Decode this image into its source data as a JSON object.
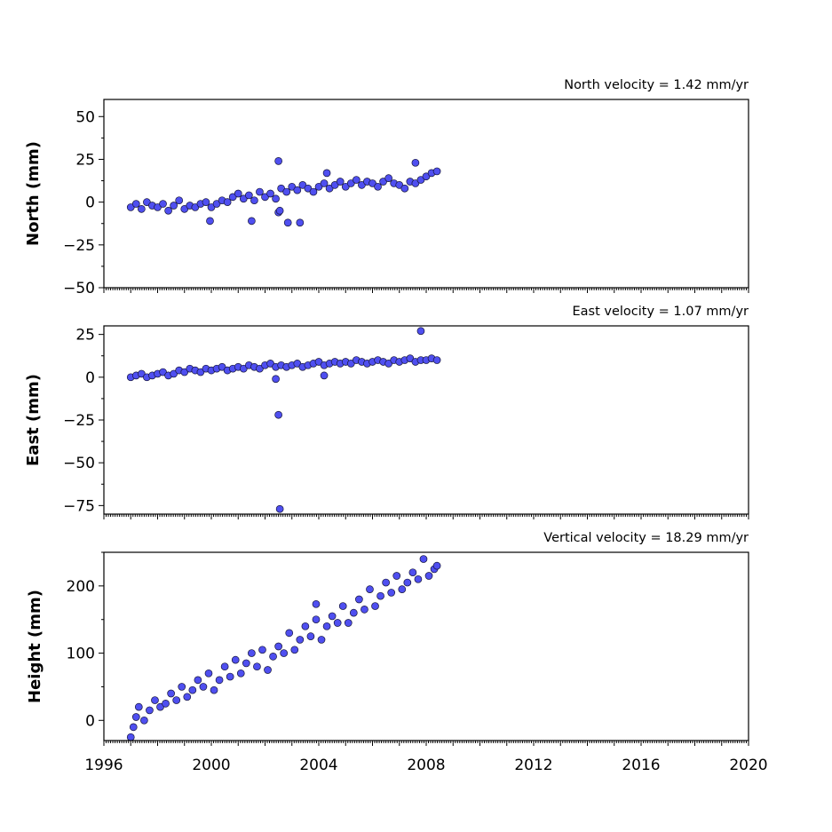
{
  "chart_data": [
    {
      "type": "scatter",
      "title": "North velocity = 1.42 mm/yr",
      "ylabel": "North (mm)",
      "xlim": [
        1996,
        2020
      ],
      "ylim": [
        -50,
        60
      ],
      "yticks": [
        -50,
        -25,
        0,
        25,
        50
      ],
      "yticklabels": [
        "−50",
        "−25",
        "0",
        "25",
        "50"
      ],
      "marker_color": "#4f4ff0",
      "series": [
        {
          "x": [
            1997.0,
            1997.2,
            1997.4,
            1997.6,
            1997.8,
            1998.0,
            1998.2,
            1998.4,
            1998.6,
            1998.8,
            1999.0,
            1999.2,
            1999.4,
            1999.6,
            1999.8,
            2000.0,
            2000.2,
            2000.4,
            2000.6,
            2000.8,
            2001.0,
            2001.2,
            2001.4,
            2001.6,
            2001.8,
            2002.0,
            2002.2,
            2002.4,
            2002.6,
            2002.8,
            2003.0,
            2003.2,
            2003.4,
            2003.6,
            2003.8,
            2004.0,
            2004.2,
            2004.4,
            2004.6,
            2004.8,
            2005.0,
            2005.2,
            2005.4,
            2005.6,
            2005.8,
            2006.0,
            2006.2,
            2006.4,
            2006.6,
            2006.8,
            2007.0,
            2007.2,
            2007.4,
            2007.6,
            2007.8,
            2008.0,
            2008.2,
            2008.4,
            1999.95,
            2001.5,
            2002.5,
            2002.55,
            2002.85,
            2003.3,
            2002.5,
            2007.6,
            2004.3
          ],
          "y": [
            -3,
            -1,
            -4,
            0,
            -2,
            -3,
            -1,
            -5,
            -2,
            1,
            -4,
            -2,
            -3,
            -1,
            0,
            -3,
            -1,
            1,
            0,
            3,
            5,
            2,
            4,
            1,
            6,
            3,
            5,
            2,
            8,
            6,
            9,
            7,
            10,
            8,
            6,
            9,
            11,
            8,
            10,
            12,
            9,
            11,
            13,
            10,
            12,
            11,
            9,
            12,
            14,
            11,
            10,
            8,
            12,
            11,
            13,
            15,
            17,
            18,
            -11,
            -11,
            -6,
            -5,
            -12,
            -12,
            24,
            23,
            17
          ]
        }
      ]
    },
    {
      "type": "scatter",
      "title": "East velocity = 1.07 mm/yr",
      "ylabel": "East (mm)",
      "xlim": [
        1996,
        2020
      ],
      "ylim": [
        -80,
        30
      ],
      "yticks": [
        -75,
        -50,
        -25,
        0,
        25
      ],
      "yticklabels": [
        "−75",
        "−50",
        "−25",
        "0",
        "25"
      ],
      "marker_color": "#4f4ff0",
      "series": [
        {
          "x": [
            1997.0,
            1997.2,
            1997.4,
            1997.6,
            1997.8,
            1998.0,
            1998.2,
            1998.4,
            1998.6,
            1998.8,
            1999.0,
            1999.2,
            1999.4,
            1999.6,
            1999.8,
            2000.0,
            2000.2,
            2000.4,
            2000.6,
            2000.8,
            2001.0,
            2001.2,
            2001.4,
            2001.6,
            2001.8,
            2002.0,
            2002.2,
            2002.4,
            2002.6,
            2002.8,
            2003.0,
            2003.2,
            2003.4,
            2003.6,
            2003.8,
            2004.0,
            2004.2,
            2004.4,
            2004.6,
            2004.8,
            2005.0,
            2005.2,
            2005.4,
            2005.6,
            2005.8,
            2006.0,
            2006.2,
            2006.4,
            2006.6,
            2006.8,
            2007.0,
            2007.2,
            2007.4,
            2007.6,
            2007.8,
            2008.0,
            2008.2,
            2008.4,
            2002.4,
            2002.5,
            2002.55,
            2004.2,
            2007.8
          ],
          "y": [
            0,
            1,
            2,
            0,
            1,
            2,
            3,
            1,
            2,
            4,
            3,
            5,
            4,
            3,
            5,
            4,
            5,
            6,
            4,
            5,
            6,
            5,
            7,
            6,
            5,
            7,
            8,
            6,
            7,
            6,
            7,
            8,
            6,
            7,
            8,
            9,
            7,
            8,
            9,
            8,
            9,
            8,
            10,
            9,
            8,
            9,
            10,
            9,
            8,
            10,
            9,
            10,
            11,
            9,
            10,
            10,
            11,
            10,
            -1,
            -22,
            -77,
            1,
            27
          ]
        }
      ]
    },
    {
      "type": "scatter",
      "title": "Vertical velocity = 18.29 mm/yr",
      "ylabel": "Height (mm)",
      "xlabel": "",
      "xlim": [
        1996,
        2020
      ],
      "ylim": [
        -30,
        250
      ],
      "yticks": [
        0,
        100,
        200
      ],
      "yticklabels": [
        "0",
        "100",
        "200"
      ],
      "xticks": [
        1996,
        2000,
        2004,
        2008,
        2012,
        2016,
        2020
      ],
      "xticklabels": [
        "1996",
        "2000",
        "2004",
        "2008",
        "2012",
        "2016",
        "2020"
      ],
      "marker_color": "#4f4ff0",
      "series": [
        {
          "x": [
            1997.0,
            1997.1,
            1997.2,
            1997.3,
            1997.5,
            1997.7,
            1997.9,
            1998.1,
            1998.3,
            1998.5,
            1998.7,
            1998.9,
            1999.1,
            1999.3,
            1999.5,
            1999.7,
            1999.9,
            2000.1,
            2000.3,
            2000.5,
            2000.7,
            2000.9,
            2001.1,
            2001.3,
            2001.5,
            2001.7,
            2001.9,
            2002.1,
            2002.3,
            2002.5,
            2002.7,
            2002.9,
            2003.1,
            2003.3,
            2003.5,
            2003.7,
            2003.9,
            2004.1,
            2004.3,
            2004.5,
            2004.7,
            2004.9,
            2005.1,
            2005.3,
            2005.5,
            2005.7,
            2005.9,
            2006.1,
            2006.3,
            2006.5,
            2006.7,
            2006.9,
            2007.1,
            2007.3,
            2007.5,
            2007.7,
            2007.9,
            2008.1,
            2008.3,
            2008.4,
            2003.9
          ],
          "y": [
            -25,
            -10,
            5,
            20,
            0,
            15,
            30,
            20,
            25,
            40,
            30,
            50,
            35,
            45,
            60,
            50,
            70,
            45,
            60,
            80,
            65,
            90,
            70,
            85,
            100,
            80,
            105,
            75,
            95,
            110,
            100,
            130,
            105,
            120,
            140,
            125,
            150,
            120,
            140,
            155,
            145,
            170,
            145,
            160,
            180,
            165,
            195,
            170,
            185,
            205,
            190,
            215,
            195,
            205,
            220,
            210,
            240,
            215,
            225,
            230,
            173
          ]
        }
      ]
    }
  ]
}
